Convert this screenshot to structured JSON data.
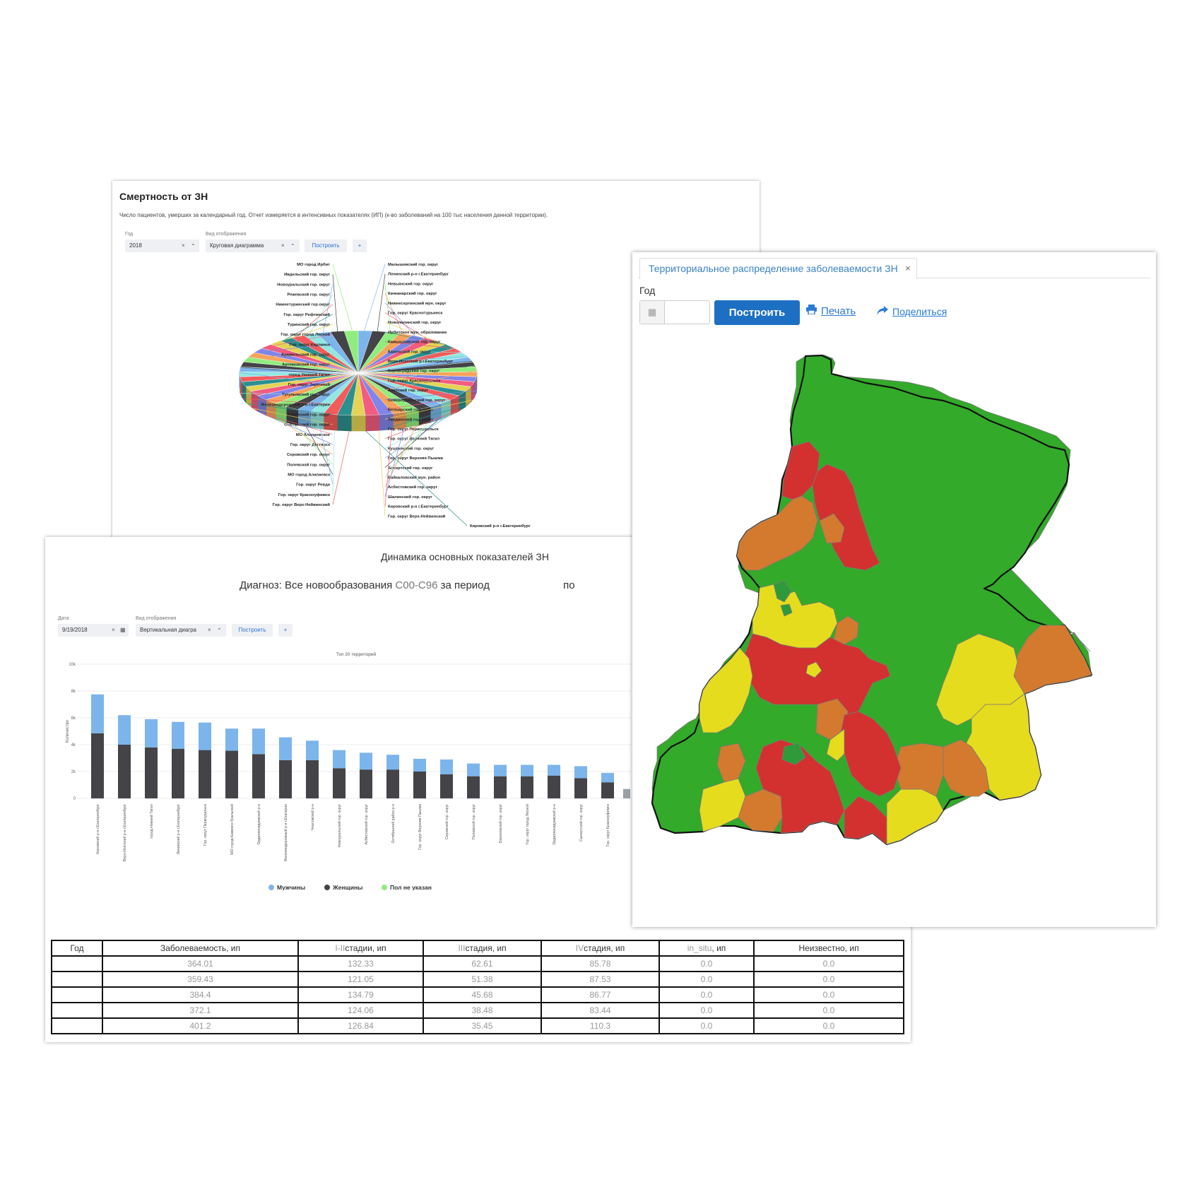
{
  "mortality_card": {
    "title": "Смертность от ЗН",
    "description": "Число пациентов, умерших за календарный год. Отчет измеряется в интенсивных показателях (ИП) (к-во заболеваний на 100 тыс населения данной территории).",
    "year_label": "Год",
    "year_value": "2018",
    "view_label": "Вид отображения",
    "view_value": "Круговая диаграмма",
    "build_label": "Построить",
    "add_label": "+",
    "clear_glyph": "×",
    "chevron_glyph": "⌄"
  },
  "dynamics_card": {
    "title": "Динамика основных показателей ЗН",
    "subtitle_prefix": "Диагноз: Все новообразования",
    "subtitle_code": "С00-С96",
    "subtitle_period": "за период",
    "subtitle_to": "по",
    "date_label": "Дата",
    "date_value": "9/19/2018",
    "view_label": "Вид отображения",
    "view_value": "Вертикальная диагра",
    "build_label": "Построить",
    "add_label": "+",
    "clear_glyph": "×",
    "calendar_glyph": "▦",
    "chevron_glyph": "⌄"
  },
  "map_card": {
    "tab_label": "Территориальное распределение заболеваемости ЗН",
    "tab_close": "×",
    "year_label": "Год",
    "calendar_glyph": "▦",
    "build_label": "Построить",
    "print_label": "Печать",
    "share_label": "Поделиться",
    "icons": [
      "calendar-icon",
      "print-icon",
      "share-icon"
    ],
    "colors": {
      "green": "#33aa2a",
      "yellow": "#e6dc1e",
      "orange": "#d47a2e",
      "red": "#d2312f"
    }
  },
  "stats_table": {
    "headers": [
      "Год",
      "Заболеваемость, ип",
      "I-II",
      "стадии, ип",
      "III",
      "стадия, ип",
      "IV",
      "стадия, ип",
      "in_situ",
      ", ип",
      "Неизвестно, ип"
    ],
    "rows": [
      [
        "",
        "364.01",
        "132.33",
        "62.61",
        "85.78",
        "0.0",
        "0.0"
      ],
      [
        "",
        "359.43",
        "121.05",
        "51.38",
        "87.53",
        "0.0",
        "0.0"
      ],
      [
        "",
        "384.4",
        "134.79",
        "45.68",
        "86.77",
        "0.0",
        "0.0"
      ],
      [
        "",
        "372.1",
        "124.06",
        "38.48",
        "83.44",
        "0.0",
        "0.0"
      ],
      [
        "",
        "401.2",
        "126.84",
        "35.45",
        "110.3",
        "0.0",
        "0.0"
      ]
    ]
  },
  "chart_data": [
    {
      "type": "pie",
      "title": "",
      "labels_left": [
        "МО город Ирбит",
        "Ивдельский гор. округ",
        "Новоуральский гор. округ",
        "Режевской гор. округ",
        "Нижнетуринский гор.округ",
        "Гор. округ Рефтинский",
        "Туринский гор. округ",
        "Гор. округ город Лесной",
        "Гор. округ Карпинск",
        "Арамильский гор. округ",
        "Артемовский гор. округ",
        "город Нижний Тагил",
        "Гор. округ Заречный",
        "Тугулымский гор. округ",
        "Железнодорожный р-н г.Екатерин",
        "Артинский гор. округ",
        "Сысертский гор. округ",
        "МО Алапаевское",
        "Гор. округ Дегтярск",
        "Серовский гор. округ",
        "Полевской гор. округ",
        "МО город Алапаевск",
        "Гор. округ Ревда",
        "Гор. округ Красноуфимск",
        "Гор. округ Верх-Нейвинский"
      ],
      "labels_right": [
        "Малышевский гор. округ",
        "Ленинский р-н г.Екатеринбург",
        "Невьянский гор. округ",
        "Качканарский гор. округ",
        "Нижнесергинский мун. округ",
        "Гор. округ Краснотурьинск",
        "Новолялинский гор. округ",
        "Ирбитское мун. образование",
        "Камышловский гор. округ",
        "Каменский гор. округ",
        "Верх-Исетский р.г.Екатеринбург",
        "Кировградский гор. округ",
        "Гор. округ Красноуральск",
        "Ачитский гор. округ",
        "Североуральский гор. округ",
        "Белоярский гор. округ",
        "Тавдинский гор. округ",
        "Гор. округ Первоуральск",
        "Гор. округ Верхний Тагил",
        "Кушвинский гор. округ",
        "Гор. округ Верхняя Пышма",
        "Бисертский гор. округ",
        "Байкаловский мун. район",
        "Асбестовский гор. округ",
        "Шалинский гор. округ",
        "Кировский р-н г.Екатеринбург",
        "Гор. округ Верх-Нейвинский",
        "Кировский р-н г.Екатеринбург"
      ],
      "colors": [
        "#7cb5ec",
        "#434348",
        "#90ed7d",
        "#f7a35c",
        "#8085e9",
        "#f15c80",
        "#e4d354",
        "#2b908f",
        "#f45b5b",
        "#91e8e1"
      ]
    },
    {
      "type": "bar",
      "title": "Топ 20 территорий",
      "ylabel": "Количество",
      "yticks": [
        "0",
        "2k",
        "4k",
        "6k",
        "8k",
        "10k"
      ],
      "ylim": [
        0,
        10000
      ],
      "categories": [
        "Кировский р-н г.Екатеринбург",
        "Верх-Исетский р-н г.Екатеринбург",
        "город Нижний Тагил",
        "Ленинский р-н г.Екатеринбург",
        "Гор. округ Первоуральск",
        "МО город Каменск-Уральский",
        "Орджоникидзевский р-н",
        "Железнодорожный р-н г.Екатерин",
        "Чкаловский р-н",
        "Новоуральский гор. округ",
        "Асбестовский гор. округ",
        "Октябрьский район р-н",
        "Гор. округ Верхняя Пышма",
        "Серовский гор. округ",
        "Полевской гор. округ",
        "Березовский гор. округ",
        "Гор. округ город Лесной",
        "Орджоникидзевский р-н",
        "Сысертский гор. округ",
        "Гор. округ Красноуфимск"
      ],
      "series": [
        {
          "name": "Мужчины",
          "color": "#7cb5ec",
          "values": [
            2900,
            2200,
            2100,
            2000,
            2050,
            1650,
            1900,
            1700,
            1450,
            1350,
            1250,
            1100,
            950,
            1100,
            950,
            850,
            850,
            800,
            900,
            700
          ]
        },
        {
          "name": "Женщины",
          "color": "#434348",
          "values": [
            4850,
            4000,
            3800,
            3700,
            3600,
            3550,
            3300,
            2850,
            2850,
            2250,
            2150,
            2150,
            2000,
            1800,
            1650,
            1650,
            1650,
            1700,
            1500,
            1200
          ]
        },
        {
          "name": "Пол не указан",
          "color": "#90ed7d",
          "values": [
            0,
            0,
            0,
            0,
            0,
            0,
            0,
            0,
            0,
            0,
            0,
            0,
            0,
            0,
            0,
            0,
            0,
            0,
            0,
            0
          ]
        }
      ]
    }
  ]
}
